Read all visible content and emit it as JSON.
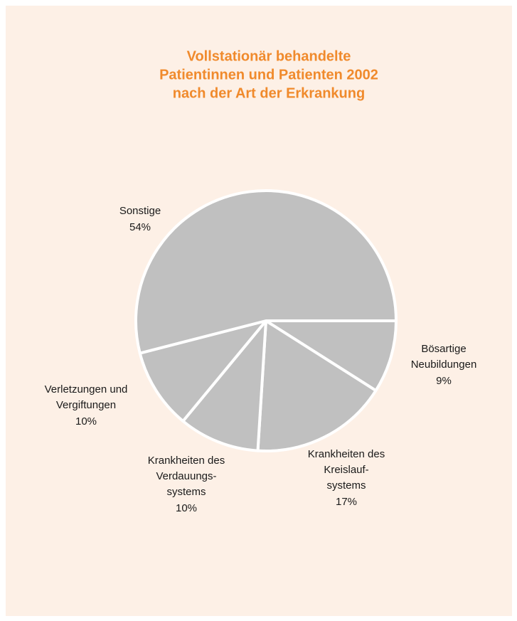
{
  "chart_data": {
    "type": "pie",
    "title": [
      "Vollstationär behandelte",
      "Patientinnen und Patienten 2002",
      "nach der Art der Erkrankung"
    ],
    "categories": [
      [
        "Bösartige",
        "Neubildungen"
      ],
      [
        "Krankheiten des",
        "Kreislauf-",
        "systems"
      ],
      [
        "Krankheiten des",
        "Verdauungs-",
        "systems"
      ],
      [
        "Verletzungen und",
        "Vergiftungen"
      ],
      [
        "Sonstige"
      ]
    ],
    "values": [
      9,
      17,
      10,
      10,
      54
    ],
    "value_labels": [
      "9%",
      "17%",
      "10%",
      "10%",
      "54%"
    ],
    "color": "#c0c0c0"
  }
}
